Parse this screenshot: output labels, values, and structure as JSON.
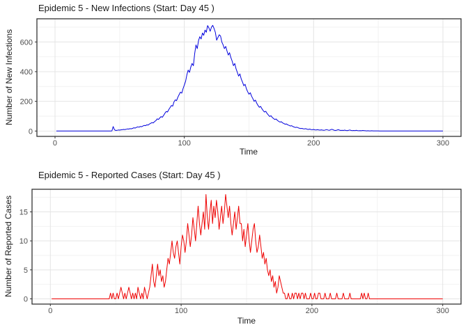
{
  "theme": {
    "background": "#FFFFFF",
    "panel_background": "#FFFFFF",
    "grid_major": "#E4E4E4",
    "grid_minor": "#F2F2F2",
    "panel_border": "#333333",
    "tick_mark": "#333333",
    "tick_label_color": "#4D4D4D",
    "title_color": "#1A1A1A"
  },
  "chart_data": [
    {
      "type": "line",
      "title": "Epidemic 5 - New Infections (Start: Day 45 )",
      "xlabel": "Time",
      "ylabel": "Number of New Infections",
      "series_name": "new-infections",
      "line_color": "#0000DD",
      "legend": "none",
      "grid": true,
      "x_ticks": [
        0,
        100,
        200,
        300
      ],
      "x_minor_ticks": [
        50,
        150,
        250
      ],
      "y_ticks": [
        0,
        200,
        400,
        600
      ],
      "y_minor_ticks": [
        100,
        300,
        500,
        700
      ],
      "xlim": [
        -14,
        314
      ],
      "ylim": [
        -36,
        756
      ],
      "x_start": 1,
      "x_step": 1,
      "values": [
        0,
        0,
        0,
        0,
        0,
        0,
        0,
        0,
        0,
        0,
        0,
        0,
        0,
        0,
        0,
        0,
        0,
        0,
        0,
        0,
        0,
        0,
        0,
        0,
        0,
        0,
        0,
        0,
        0,
        0,
        0,
        0,
        0,
        0,
        0,
        0,
        0,
        0,
        0,
        0,
        0,
        0,
        0,
        1,
        30,
        8,
        4,
        5,
        7,
        6,
        8,
        9,
        11,
        10,
        12,
        14,
        13,
        16,
        15,
        18,
        22,
        20,
        25,
        28,
        26,
        31,
        29,
        34,
        38,
        36,
        42,
        40,
        47,
        52,
        57,
        55,
        64,
        70,
        82,
        78,
        88,
        97,
        93,
        106,
        120,
        132,
        128,
        145,
        158,
        172,
        168,
        196,
        210,
        205,
        228,
        245,
        262,
        255,
        285,
        310,
        335,
        380,
        410,
        395,
        430,
        455,
        440,
        520,
        580,
        555,
        610,
        635,
        620,
        660,
        645,
        680,
        665,
        710,
        695,
        672,
        700,
        712,
        690,
        665,
        612,
        630,
        648,
        640,
        600,
        580,
        555,
        570,
        540,
        512,
        528,
        495,
        470,
        440,
        455,
        420,
        395,
        370,
        385,
        350,
        330,
        305,
        315,
        285,
        265,
        248,
        258,
        235,
        218,
        200,
        208,
        188,
        172,
        160,
        166,
        150,
        138,
        128,
        133,
        118,
        108,
        98,
        103,
        92,
        84,
        78,
        81,
        72,
        65,
        60,
        63,
        55,
        50,
        46,
        48,
        42,
        38,
        34,
        36,
        30,
        27,
        24,
        26,
        22,
        19,
        17,
        18,
        15,
        14,
        16,
        12,
        11,
        13,
        10,
        9,
        11,
        8,
        7,
        9,
        7,
        6,
        8,
        6,
        5,
        7,
        10,
        7,
        5,
        8,
        12,
        9,
        5,
        4,
        6,
        9,
        6,
        4,
        5,
        4,
        6,
        4,
        3,
        5,
        7,
        4,
        3,
        4,
        3,
        5,
        3,
        2,
        3,
        2,
        4,
        3,
        2,
        1,
        2,
        1,
        1,
        2,
        1,
        1,
        1,
        1,
        1,
        0,
        0,
        0,
        0,
        0,
        0,
        0,
        0,
        0,
        0,
        0,
        0,
        0,
        0,
        0,
        0,
        0,
        0,
        0,
        0,
        0,
        0,
        0,
        0,
        0,
        0,
        0,
        0,
        0,
        0,
        0,
        0,
        0,
        0,
        0,
        0,
        0,
        0,
        0,
        0,
        0,
        0,
        0,
        0,
        0,
        0,
        0,
        0,
        0,
        0
      ]
    },
    {
      "type": "line",
      "title": "Epidemic 5 - Reported Cases (Start: Day 45 )",
      "xlabel": "Time",
      "ylabel": "Number of Reported Cases",
      "series_name": "reported-cases",
      "line_color": "#EE0000",
      "legend": "none",
      "grid": true,
      "x_ticks": [
        0,
        100,
        200,
        300
      ],
      "x_minor_ticks": [
        50,
        150,
        250
      ],
      "y_ticks": [
        0,
        5,
        10,
        15
      ],
      "y_minor_ticks": [
        2.5,
        7.5,
        12.5,
        17.5
      ],
      "xlim": [
        -14,
        314
      ],
      "ylim": [
        -0.9,
        18.9
      ],
      "x_start": 1,
      "x_step": 1,
      "values": [
        0,
        0,
        0,
        0,
        0,
        0,
        0,
        0,
        0,
        0,
        0,
        0,
        0,
        0,
        0,
        0,
        0,
        0,
        0,
        0,
        0,
        0,
        0,
        0,
        0,
        0,
        0,
        0,
        0,
        0,
        0,
        0,
        0,
        0,
        0,
        0,
        0,
        0,
        0,
        0,
        0,
        0,
        0,
        0,
        0,
        1,
        0,
        1,
        0,
        0,
        1,
        0,
        1,
        2,
        1,
        0,
        1,
        0,
        1,
        2,
        1,
        0,
        1,
        0,
        1,
        0,
        2,
        1,
        0,
        1,
        0,
        2,
        1,
        0,
        1,
        2,
        4,
        6,
        3,
        2,
        4,
        6,
        4,
        5,
        3,
        4,
        2,
        3,
        5,
        7,
        6,
        8,
        10,
        8,
        7,
        9,
        10,
        8,
        6,
        9,
        11,
        10,
        8,
        10,
        13,
        11,
        9,
        11,
        14,
        12,
        10,
        13,
        16,
        13,
        11,
        13,
        15,
        12,
        18,
        14,
        12,
        15,
        17,
        13,
        16,
        14,
        17,
        15,
        12,
        14,
        16,
        13,
        15,
        18,
        16,
        14,
        16,
        13,
        11,
        13,
        15,
        12,
        14,
        16,
        13,
        13,
        10,
        12,
        9,
        11,
        13,
        10,
        8,
        10,
        12,
        13,
        10,
        8,
        9,
        11,
        9,
        7,
        8,
        6,
        7,
        5,
        4,
        5,
        3,
        4,
        2,
        3,
        1,
        2,
        4,
        3,
        2,
        1,
        1,
        0,
        0,
        1,
        0,
        0,
        1,
        0,
        1,
        1,
        0,
        1,
        0,
        1,
        1,
        0,
        1,
        0,
        0,
        0,
        1,
        0,
        0,
        1,
        0,
        0,
        1,
        1,
        0,
        0,
        0,
        1,
        0,
        0,
        0,
        1,
        0,
        0,
        0,
        0,
        1,
        0,
        0,
        0,
        0,
        1,
        0,
        0,
        0,
        0,
        1,
        0,
        0,
        0,
        0,
        0,
        0,
        0,
        0,
        1,
        0,
        1,
        0,
        0,
        1,
        0,
        0,
        0,
        0,
        0,
        0,
        0,
        0,
        0,
        0,
        0,
        0,
        0,
        0,
        0,
        0,
        0,
        0,
        0,
        0,
        0,
        0,
        0,
        0,
        0,
        0,
        0,
        0,
        0,
        0,
        0,
        0,
        0,
        0,
        0,
        0,
        0,
        0,
        0,
        0,
        0,
        0,
        0,
        0,
        0,
        0,
        0,
        0,
        0,
        0,
        0,
        0,
        0,
        0,
        0,
        0,
        0
      ]
    }
  ]
}
